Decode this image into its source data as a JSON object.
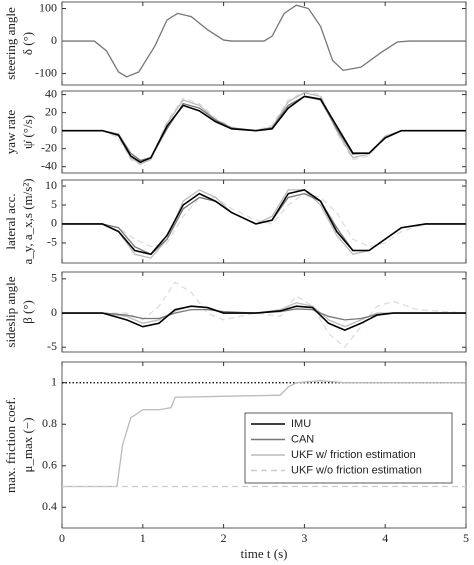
{
  "chart_data": [
    {
      "type": "line",
      "ylabel": [
        "steering angle",
        "δ (°)"
      ],
      "xlim": [
        0,
        5
      ],
      "xticks": [
        0,
        1,
        2,
        3,
        4,
        5
      ],
      "ylim": [
        -135,
        120
      ],
      "yticks": [
        -100,
        0,
        100
      ],
      "x": [
        0,
        0.4,
        0.55,
        0.7,
        0.8,
        0.95,
        1.15,
        1.3,
        1.43,
        1.6,
        1.8,
        2.0,
        2.1,
        2.5,
        2.6,
        2.75,
        2.9,
        3.05,
        3.2,
        3.35,
        3.48,
        3.7,
        3.95,
        4.15,
        4.3,
        5
      ],
      "series": [
        {
          "color": "#777777",
          "values": [
            0,
            0,
            -30,
            -95,
            -110,
            -95,
            -15,
            65,
            85,
            75,
            35,
            3,
            0,
            0,
            15,
            85,
            110,
            100,
            45,
            -60,
            -90,
            -80,
            -35,
            -3,
            0,
            0
          ]
        }
      ]
    },
    {
      "type": "line",
      "ylabel": [
        "yaw rate",
        "ψ̇ (°/s)"
      ],
      "xlim": [
        0,
        5
      ],
      "xticks": [
        0,
        1,
        2,
        3,
        4,
        5
      ],
      "ylim": [
        -47,
        44
      ],
      "yticks": [
        -40,
        -20,
        0,
        20,
        40
      ],
      "x": [
        0,
        0.5,
        0.7,
        0.85,
        0.97,
        1.1,
        1.3,
        1.5,
        1.7,
        1.9,
        2.1,
        2.4,
        2.6,
        2.8,
        3.0,
        3.2,
        3.4,
        3.6,
        3.8,
        4.0,
        4.2,
        5
      ],
      "series": [
        {
          "color": "#dddddd",
          "dash": "dashed",
          "values": [
            0,
            0,
            -8,
            -32,
            -38,
            -30,
            10,
            36,
            30,
            14,
            4,
            0,
            6,
            34,
            43,
            40,
            -2,
            -32,
            -28,
            -6,
            0,
            0
          ]
        },
        {
          "color": "#bbbbbb",
          "values": [
            0,
            0,
            -6,
            -30,
            -37,
            -32,
            8,
            34,
            28,
            12,
            2,
            0,
            4,
            32,
            42,
            38,
            0,
            -30,
            -26,
            -6,
            0,
            0
          ]
        },
        {
          "color": "#777777",
          "values": [
            0,
            0,
            -4,
            -25,
            -33,
            -30,
            2,
            30,
            25,
            12,
            3,
            0,
            3,
            28,
            38,
            34,
            2,
            -26,
            -25,
            -8,
            0,
            0
          ]
        },
        {
          "color": "#000000",
          "values": [
            0,
            0,
            -5,
            -28,
            -35,
            -30,
            5,
            28,
            22,
            10,
            2,
            0,
            2,
            25,
            38,
            35,
            5,
            -25,
            -25,
            -8,
            0,
            0
          ]
        }
      ]
    },
    {
      "type": "line",
      "ylabel": [
        "lateral acc.",
        "a_y, a_x,s (m/s²)"
      ],
      "xlim": [
        0,
        5
      ],
      "xticks": [
        0,
        1,
        2,
        3,
        4,
        5
      ],
      "ylim": [
        -10.3,
        11.6
      ],
      "yticks": [
        -5,
        0,
        5,
        10
      ],
      "x": [
        0,
        0.5,
        0.7,
        0.9,
        1.1,
        1.3,
        1.5,
        1.7,
        1.9,
        2.1,
        2.4,
        2.6,
        2.8,
        3.0,
        3.2,
        3.4,
        3.6,
        3.8,
        4.0,
        4.2,
        4.5,
        5
      ],
      "series": [
        {
          "color": "#dddddd",
          "dash": "dashed",
          "values": [
            0,
            0,
            -1,
            -4,
            -6,
            -5,
            2,
            7,
            7,
            4,
            1,
            0,
            5,
            8,
            7,
            3,
            -4,
            -6,
            -5,
            -2,
            0,
            0
          ]
        },
        {
          "color": "#bbbbbb",
          "values": [
            0,
            0,
            -2,
            -8,
            -9,
            -4,
            6,
            9,
            7,
            3,
            0,
            2,
            9,
            9,
            5,
            -3,
            -8,
            -7,
            -4,
            -1,
            0,
            0
          ]
        },
        {
          "color": "#777777",
          "values": [
            0,
            0,
            -1,
            -6,
            -8,
            -4,
            4,
            7,
            6,
            3,
            0,
            1,
            7,
            8,
            6,
            -1,
            -7,
            -7,
            -4,
            -1,
            0,
            0
          ]
        },
        {
          "color": "#000000",
          "values": [
            0,
            0,
            -2,
            -7,
            -8,
            -3,
            5,
            8,
            6,
            3,
            0,
            1,
            8,
            9,
            6,
            -2,
            -7,
            -7,
            -4,
            -1,
            0,
            0
          ]
        }
      ]
    },
    {
      "type": "line",
      "ylabel": [
        "sideslip angle",
        "β (°)"
      ],
      "xlim": [
        0,
        5
      ],
      "xticks": [
        0,
        1,
        2,
        3,
        4,
        5
      ],
      "ylim": [
        -5.7,
        6
      ],
      "yticks": [
        -5,
        0,
        5
      ],
      "x": [
        0,
        0.5,
        0.8,
        1.0,
        1.2,
        1.4,
        1.6,
        1.8,
        2.0,
        2.4,
        2.7,
        2.9,
        3.1,
        3.3,
        3.5,
        3.7,
        3.9,
        4.1,
        4.4,
        5
      ],
      "series": [
        {
          "color": "#dddddd",
          "dash": "dashed",
          "values": [
            0,
            0,
            0,
            -1,
            1,
            4.5,
            3,
            0,
            -1,
            0,
            -0.5,
            2.5,
            1,
            -3,
            -5,
            -2,
            1,
            1.7,
            0.5,
            0
          ]
        },
        {
          "color": "#bbbbbb",
          "values": [
            0,
            0,
            -0.5,
            -1.5,
            -1,
            0.3,
            1,
            0.8,
            0,
            0,
            0.5,
            1.5,
            1,
            -1,
            -2,
            -1,
            0,
            0,
            0,
            0
          ]
        },
        {
          "color": "#777777",
          "values": [
            0,
            0,
            -0.3,
            -0.8,
            -0.8,
            0,
            0.5,
            0.5,
            0.2,
            0,
            0.2,
            0.6,
            0.5,
            -0.5,
            -1,
            -0.8,
            -0.2,
            0,
            0,
            0
          ]
        },
        {
          "color": "#000000",
          "values": [
            0,
            0,
            -1,
            -2,
            -1.5,
            0.5,
            1,
            0.8,
            0,
            0,
            0.3,
            1,
            0.8,
            -1.5,
            -2.5,
            -1.5,
            -0.3,
            0,
            0,
            0
          ]
        }
      ]
    },
    {
      "type": "line",
      "ylabel": [
        "max. friction coef.",
        "μ_max (−)"
      ],
      "xlabel": "time t (s)",
      "show_xticklabels": true,
      "xlim": [
        0,
        5
      ],
      "xticks": [
        0,
        1,
        2,
        3,
        4,
        5
      ],
      "ylim": [
        0.3,
        1.1
      ],
      "yticks": [
        0.4,
        0.6,
        0.8,
        1
      ],
      "legend": "lower right",
      "series": [
        {
          "color": "#000000",
          "dash": "dotted",
          "x": [
            0,
            5
          ],
          "values": [
            1,
            1
          ]
        },
        {
          "name": "IMU",
          "color": "#000000",
          "x": [],
          "values": []
        },
        {
          "name": "CAN",
          "color": "#777777",
          "x": [],
          "values": []
        },
        {
          "name": "UKF w/ friction estimation",
          "color": "#bbbbbb",
          "x": [
            0,
            0.68,
            0.75,
            0.85,
            1.0,
            1.2,
            1.35,
            1.4,
            2.7,
            2.8,
            2.9,
            3.2,
            3.5,
            3.8,
            5
          ],
          "values": [
            0.5,
            0.5,
            0.7,
            0.83,
            0.87,
            0.87,
            0.88,
            0.93,
            0.94,
            0.98,
            1.0,
            1.01,
            1.0,
            1.0,
            1.0
          ]
        },
        {
          "name": "UKF w/o friction estimation",
          "color": "#cccccc",
          "dash": "dashed",
          "x": [
            0,
            5
          ],
          "values": [
            0.5,
            0.5
          ]
        }
      ]
    }
  ]
}
